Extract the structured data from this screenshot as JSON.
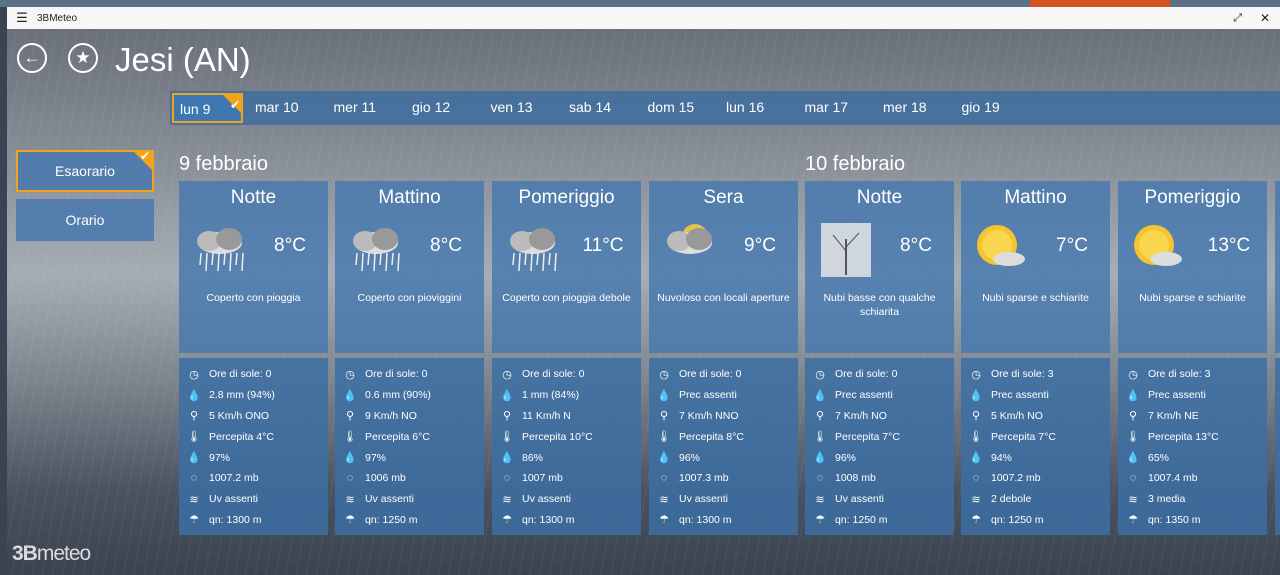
{
  "window": {
    "title": "3BMeteo",
    "menu_icon": "hamburger-icon",
    "maximize_icon": "resize-icon"
  },
  "header": {
    "city": "Jesi (AN)",
    "back_icon": "arrow-left-icon",
    "favorite_icon": "star-icon"
  },
  "days": [
    "lun 9",
    "mar 10",
    "mer 11",
    "gio 12",
    "ven 13",
    "sab 14",
    "dom 15",
    "lun 16",
    "mar 17",
    "mer 18",
    "gio 19"
  ],
  "selected_day": "lun 9",
  "view_modes": {
    "esaorario": "Esaorario",
    "orario": "Orario",
    "selected": "Esaorario"
  },
  "dates": [
    "9 febbraio",
    "10 febbraio"
  ],
  "accent_color": "#f0a31b",
  "cards": [
    {
      "period": "Notte",
      "icon": "rain-cloud-icon",
      "temp": "8°C",
      "desc": "Coperto con pioggia",
      "rows": [
        "Ore di sole: 0",
        "2.8 mm (94%)",
        "5 Km/h ONO",
        "Percepita 4°C",
        "97%",
        "1007.2 mb",
        "Uv assenti",
        "qn: 1300 m"
      ]
    },
    {
      "period": "Mattino",
      "icon": "rain-cloud-icon",
      "temp": "8°C",
      "desc": "Coperto con pioviggini",
      "rows": [
        "Ore di sole: 0",
        "0.6 mm (90%)",
        "9 Km/h NO",
        "Percepita 6°C",
        "97%",
        "1006 mb",
        "Uv assenti",
        "qn: 1250 m"
      ]
    },
    {
      "period": "Pomeriggio",
      "icon": "rain-cloud-icon",
      "temp": "11°C",
      "desc": "Coperto con pioggia debole",
      "rows": [
        "Ore di sole: 0",
        "1 mm (84%)",
        "11 Km/h N",
        "Percepita 10°C",
        "86%",
        "1007 mb",
        "Uv assenti",
        "qn: 1300 m"
      ]
    },
    {
      "period": "Sera",
      "icon": "moon-cloud-icon",
      "temp": "9°C",
      "desc": "Nuvoloso con locali aperture",
      "rows": [
        "Ore di sole: 0",
        "Prec assenti",
        "7 Km/h NNO",
        "Percepita 8°C",
        "96%",
        "1007.3 mb",
        "Uv assenti",
        "qn: 1300 m"
      ]
    },
    {
      "period": "Notte",
      "icon": "fog-tree-icon",
      "temp": "8°C",
      "desc": "Nubi basse con qualche schiarita",
      "rows": [
        "Ore di sole: 0",
        "Prec assenti",
        "7 Km/h NO",
        "Percepita 7°C",
        "96%",
        "1008 mb",
        "Uv assenti",
        "qn: 1250 m"
      ]
    },
    {
      "period": "Mattino",
      "icon": "sun-cloud-icon",
      "temp": "7°C",
      "desc": "Nubi sparse e schiarite",
      "rows": [
        "Ore di sole: 3",
        "Prec assenti",
        "5 Km/h NO",
        "Percepita 7°C",
        "94%",
        "1007.2 mb",
        "2 debole",
        "qn: 1250 m"
      ]
    },
    {
      "period": "Pomeriggio",
      "icon": "sun-cloud-icon",
      "temp": "13°C",
      "desc": "Nubi sparse e schiarite",
      "rows": [
        "Ore di sole: 3",
        "Prec assenti",
        "7 Km/h NE",
        "Percepita 13°C",
        "65%",
        "1007.4 mb",
        "3 media",
        "qn: 1350 m"
      ]
    }
  ],
  "row_icons": [
    "clock-icon",
    "drop-icon",
    "wind-turbine-icon",
    "thermometer-icon",
    "humidity-icon",
    "pressure-icon",
    "uv-icon",
    "freezing-level-icon"
  ],
  "logo": "3Bmeteo"
}
